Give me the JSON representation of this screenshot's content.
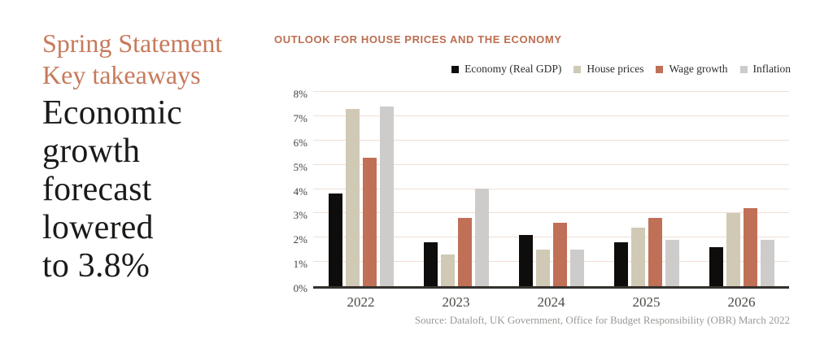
{
  "accent_color": "#bc6e51",
  "left_panel": {
    "kicker_lines": [
      "Spring Statement",
      "Key takeaways"
    ],
    "headline_lines": [
      "Economic",
      "growth",
      "forecast",
      "lowered",
      "to 3.8%"
    ]
  },
  "chart_data": {
    "type": "bar",
    "title": "OUTLOOK FOR HOUSE PRICES AND THE ECONOMY",
    "categories": [
      "2022",
      "2023",
      "2024",
      "2025",
      "2026"
    ],
    "series": [
      {
        "name": "Economy (Real GDP)",
        "color": "#0e0d0b",
        "values": [
          3.8,
          1.8,
          2.1,
          1.8,
          1.6
        ]
      },
      {
        "name": "House prices",
        "color": "#d0c9b5",
        "values": [
          7.3,
          1.3,
          1.5,
          2.4,
          3.0
        ]
      },
      {
        "name": "Wage growth",
        "color": "#bf7057",
        "values": [
          5.3,
          2.8,
          2.6,
          2.8,
          3.2
        ]
      },
      {
        "name": "Inflation",
        "color": "#cdcccb",
        "values": [
          7.4,
          4.0,
          1.5,
          1.9,
          1.9
        ]
      }
    ],
    "xlabel": "",
    "ylabel": "",
    "ylim": [
      0,
      8
    ],
    "yticks": [
      "0%",
      "1%",
      "2%",
      "3%",
      "4%",
      "5%",
      "6%",
      "7%",
      "8%"
    ],
    "grid": true,
    "gridline_color": "#f3ded2",
    "axis_line_color": "#35322e",
    "legend_position": "top-right",
    "source": "Source: Dataloft, UK Government, Office for Budget Responsibility (OBR) March 2022"
  }
}
